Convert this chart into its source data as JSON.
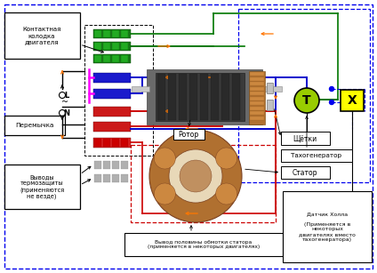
{
  "labels": {
    "kontaktnaya": "Контактная\nколодка\nдвигателя",
    "peremychka": "Перемычка",
    "vyvody": "Выводы\nтермозащиты\n(применяются\nне везде)",
    "rotor": "Ротор",
    "shchetki": "Щётки",
    "takhogenerator": "Тахогенератор",
    "stator": "Статор",
    "vyvod_poloviny": "Вывод половины обмотки статора\n(применяется в некоторых двигателях)",
    "datchik_kholla": "Датчик Холла\n\n(Применяется в\nнекоторых\nдвигателях вместо\nтахогенератора)"
  },
  "colors": {
    "green_block": "#1a7a1a",
    "blue_block": "#1a1acc",
    "red_block": "#cc1a1a",
    "gray_block": "#aaaaaa",
    "magenta_line": "#ff00ff",
    "green_line": "#007700",
    "blue_line": "#0000cc",
    "red_line": "#cc0000",
    "orange_arrow": "#ff7700",
    "dashed_blue": "#0000ee",
    "T_circle": "#99cc00",
    "X_box": "#ffff00",
    "white": "#ffffff",
    "black": "#000000"
  }
}
